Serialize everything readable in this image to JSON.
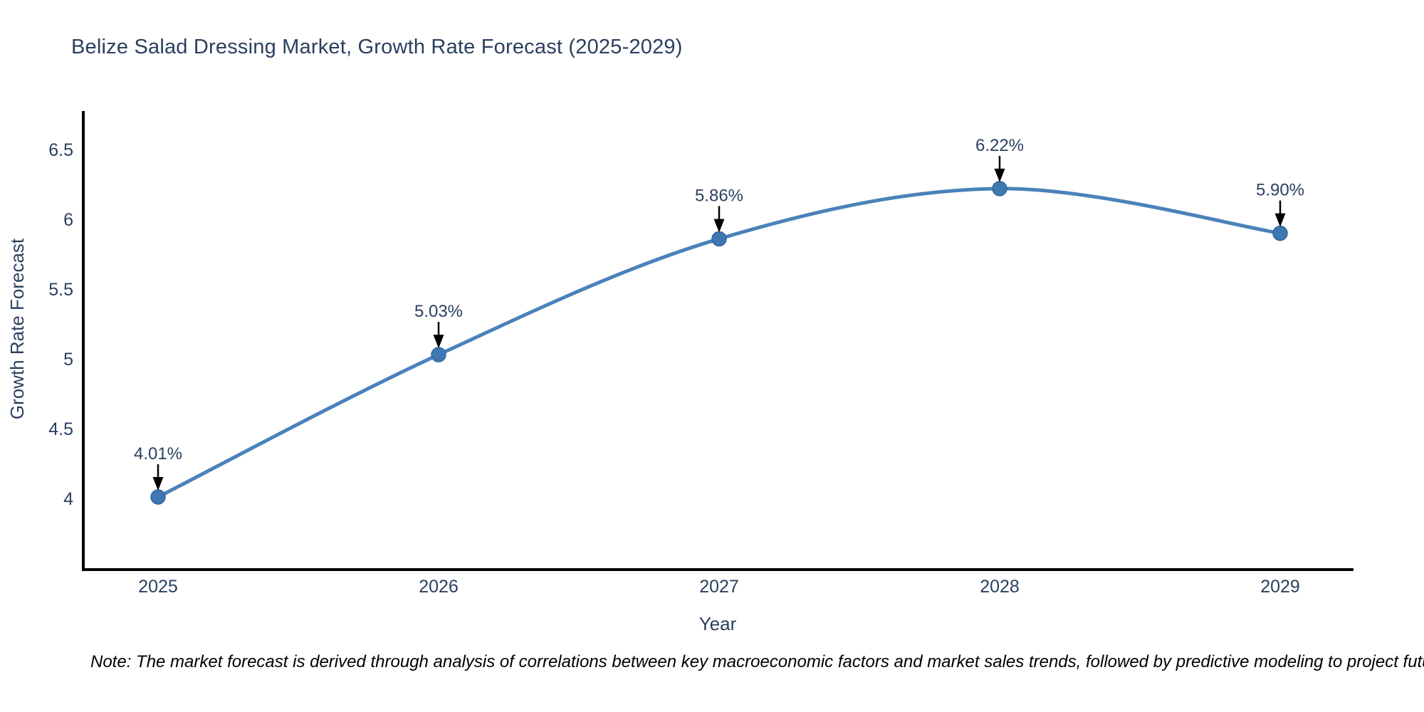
{
  "chart_data": {
    "type": "line",
    "title": "Belize Salad Dressing Market, Growth Rate Forecast (2025-2029)",
    "xlabel": "Year",
    "ylabel": "Growth Rate Forecast",
    "x": [
      2025,
      2026,
      2027,
      2028,
      2029
    ],
    "x_tick_labels": [
      "2025",
      "2026",
      "2027",
      "2028",
      "2029"
    ],
    "values": [
      4.01,
      5.03,
      5.86,
      6.22,
      5.9
    ],
    "point_labels": [
      "4.01%",
      "5.03%",
      "5.86%",
      "6.22%",
      "5.90%"
    ],
    "y_ticks": [
      4,
      4.5,
      5,
      5.5,
      6,
      6.5
    ],
    "y_tick_labels": [
      "4",
      "4.5",
      "5",
      "5.5",
      "6",
      "6.5"
    ],
    "ylim": [
      3.5,
      6.78
    ],
    "grid": false,
    "legend": "none",
    "line_shape": "spline",
    "markers": true,
    "annotations_arrow": true,
    "colors": {
      "line": "#4a82ba",
      "marker_fill": "#3f77b1",
      "marker_edge": "#35669c",
      "spine": "#000000",
      "arrow": "#000000",
      "title_text": "#2a3f5f",
      "axis_text": "#2a3f5f",
      "annotation_text": "#2a3f5f",
      "note_text": "#000000",
      "background": "#ffffff"
    }
  },
  "note": {
    "text": "Note: The market forecast is derived through analysis of correlations between key macroeconomic factors and market sales trends, followed by predictive modeling to project future sales"
  }
}
